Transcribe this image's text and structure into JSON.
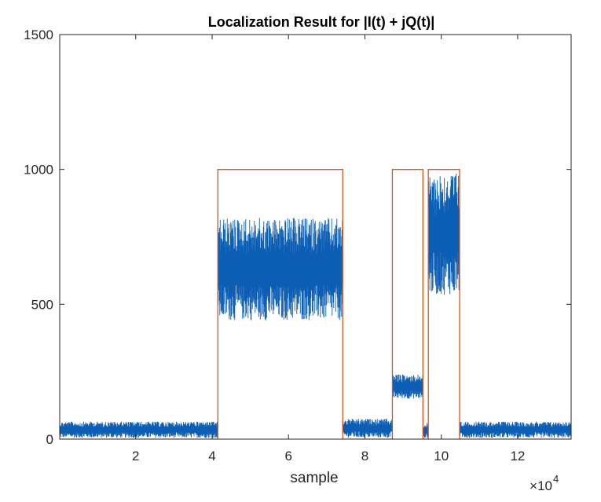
{
  "chart_data": {
    "type": "line",
    "title": "Localization Result for |I(t) + jQ(t)|",
    "xlabel": "sample",
    "ylabel": "",
    "x_exponent_label": "×10",
    "x_exponent_power": "4",
    "xlim": [
      100,
      134000
    ],
    "ylim": [
      0,
      1500
    ],
    "x_ticks": [
      20000,
      40000,
      60000,
      80000,
      100000,
      120000
    ],
    "x_tick_labels": [
      "2",
      "4",
      "6",
      "8",
      "10",
      "12"
    ],
    "y_ticks": [
      0,
      500,
      1000,
      1500
    ],
    "y_tick_labels": [
      "0",
      "500",
      "1000",
      "1500"
    ],
    "grid": false,
    "series": [
      {
        "color": "#0c5eb5",
        "style": "noisy-magnitude",
        "segments": [
          {
            "x_start": 100,
            "x_end": 41500,
            "low": 5,
            "high": 65
          },
          {
            "x_start": 41500,
            "x_end": 74200,
            "low": 440,
            "high": 820
          },
          {
            "x_start": 74200,
            "x_end": 87200,
            "low": 5,
            "high": 75
          },
          {
            "x_start": 87200,
            "x_end": 95200,
            "low": 150,
            "high": 240
          },
          {
            "x_start": 95200,
            "x_end": 96600,
            "low": 5,
            "high": 60
          },
          {
            "x_start": 96600,
            "x_end": 104800,
            "low": 535,
            "high": 990
          },
          {
            "x_start": 104800,
            "x_end": 134000,
            "low": 5,
            "high": 65
          }
        ]
      },
      {
        "color": "#d95319",
        "style": "step",
        "x": [
          100,
          41500,
          41500,
          74200,
          74200,
          87200,
          87200,
          95200,
          95200,
          96600,
          96600,
          104800,
          104800,
          134000
        ],
        "y": [
          0,
          0,
          1000,
          1000,
          0,
          0,
          1000,
          1000,
          0,
          0,
          1000,
          1000,
          0,
          0
        ]
      }
    ]
  }
}
